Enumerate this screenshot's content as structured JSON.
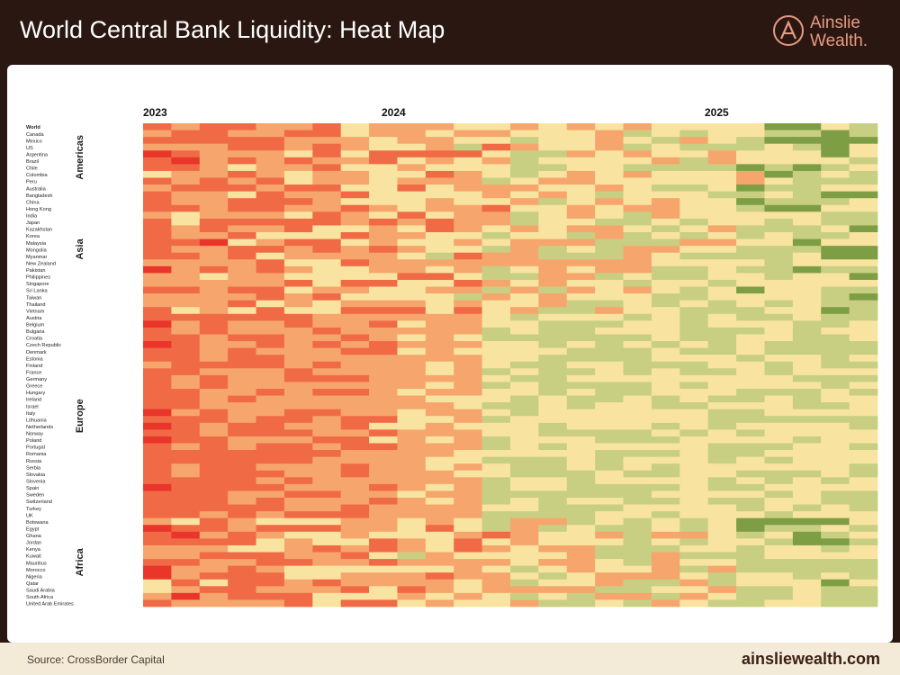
{
  "header": {
    "title": "World Central Bank Liquidity: Heat Map",
    "brand_line1": "Ainslie",
    "brand_line2": "Wealth."
  },
  "footer": {
    "source": "Source: CrossBorder Capital",
    "website": "ainsliewealth.com"
  },
  "colors": {
    "header_bg": "#2b1711",
    "footer_bg": "#f4ead8",
    "accent": "#e59a83",
    "heat_red": "#e9352a",
    "heat_orange": "#f6a66c",
    "heat_yellow": "#f8e4a0",
    "heat_green": "#7e9e45"
  },
  "chart_data": {
    "type": "heatmap",
    "title": "",
    "x_labels": [
      "2023",
      "2024",
      "2025"
    ],
    "groups": [
      {
        "name": "Americas",
        "rows": [
          "Canada",
          "Mexico",
          "US",
          "Argentina",
          "Brazil",
          "Chile",
          "Colombia",
          "Peru"
        ]
      },
      {
        "name": "Asia",
        "rows": [
          "Australia",
          "Bangladesh",
          "China",
          "Hong Kong",
          "India",
          "Japan",
          "Kazakhstan",
          "Korea",
          "Malaysia",
          "Mongolia",
          "Myanmar",
          "New Zealand",
          "Pakistan",
          "Philippines",
          "Singapore",
          "Sri Lanka",
          "Taiwan",
          "Thailand",
          "Vietnam"
        ]
      },
      {
        "name": "Europe",
        "rows": [
          "Austria",
          "Belgium",
          "Bulgaria",
          "Croatia",
          "Czech Republic",
          "Denmark",
          "Estonia",
          "Finland",
          "France",
          "Germany",
          "Greece",
          "Hungary",
          "Ireland",
          "Israel",
          "Italy",
          "Lithuania",
          "Netherlands",
          "Norway",
          "Poland",
          "Portugal",
          "Romania",
          "Russia",
          "Serbia",
          "Slovakia",
          "Slovenia",
          "Spain",
          "Sweden",
          "Switzerland",
          "Turkey",
          "UK"
        ]
      },
      {
        "name": "Africa",
        "rows": [
          "Botswana",
          "Egypt",
          "Ghana",
          "Jordan",
          "Kenya",
          "Kuwait",
          "Mauritius",
          "Morocco",
          "Nigeria",
          "Qatar",
          "Saudi Arabia",
          "South Africa",
          "United Arab Emirates"
        ]
      }
    ],
    "rows": [
      "World",
      "Canada",
      "Mexico",
      "US",
      "Argentina",
      "Brazil",
      "Chile",
      "Colombia",
      "Peru",
      "Australia",
      "Bangladesh",
      "China",
      "Hong Kong",
      "India",
      "Japan",
      "Kazakhstan",
      "Korea",
      "Malaysia",
      "Mongolia",
      "Myanmar",
      "New Zealand",
      "Pakistan",
      "Philippines",
      "Singapore",
      "Sri Lanka",
      "Taiwan",
      "Thailand",
      "Vietnam",
      "Austria",
      "Belgium",
      "Bulgaria",
      "Croatia",
      "Czech Republic",
      "Denmark",
      "Estonia",
      "Finland",
      "France",
      "Germany",
      "Greece",
      "Hungary",
      "Ireland",
      "Israel",
      "Italy",
      "Lithuania",
      "Netherlands",
      "Norway",
      "Poland",
      "Portugal",
      "Romania",
      "Russia",
      "Serbia",
      "Slovakia",
      "Slovenia",
      "Spain",
      "Sweden",
      "Switzerland",
      "Turkey",
      "UK",
      "Botswana",
      "Egypt",
      "Ghana",
      "Jordan",
      "Kenya",
      "Kuwait",
      "Mauritius",
      "Morocco",
      "Nigeria",
      "Qatar",
      "Saudi Arabia",
      "South Africa",
      "United Arab Emirates"
    ],
    "color_scale": [
      "#e9352a",
      "#f06a46",
      "#f6a66c",
      "#f8e4a0",
      "#c8cf82",
      "#7e9e45"
    ],
    "value_range": [
      0,
      5
    ],
    "grid": false,
    "legend": "none"
  }
}
